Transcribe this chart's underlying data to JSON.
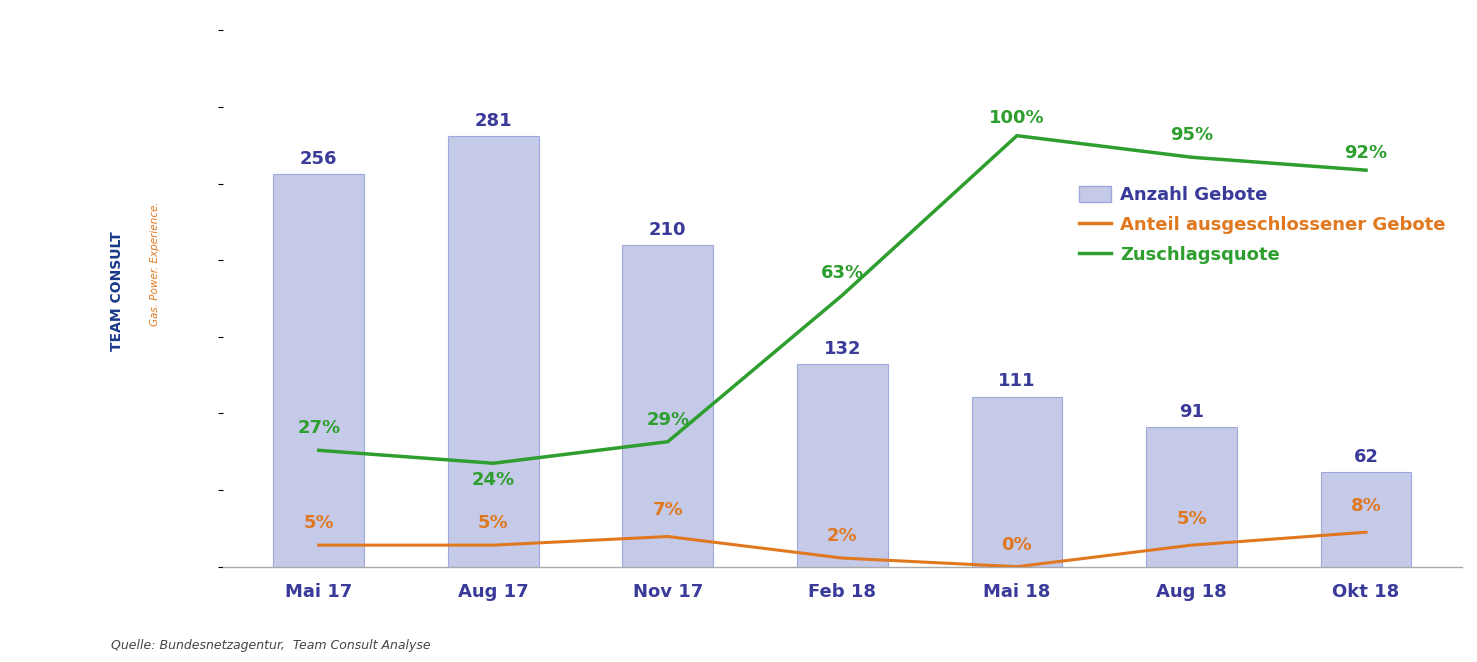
{
  "categories": [
    "Mai 17",
    "Aug 17",
    "Nov 17",
    "Feb 18",
    "Mai 18",
    "Aug 18",
    "Okt 18"
  ],
  "bar_values": [
    256,
    281,
    210,
    132,
    111,
    91,
    62
  ],
  "orange_line_values": [
    5,
    5,
    7,
    2,
    0,
    5,
    8
  ],
  "green_line_values": [
    27,
    24,
    29,
    63,
    100,
    95,
    92
  ],
  "bar_color": "#c5cae9",
  "bar_edgecolor": "#9fa8da",
  "orange_color": "#e07820",
  "green_color": "#2e9e2e",
  "bar_label_color": "#3a3a9a",
  "orange_label_color": "#e07820",
  "green_label_color": "#2e9e2e",
  "legend_bar_label": "Anzahl Gebote",
  "legend_orange_label": "Anteil ausgeschlossener Gebote",
  "legend_green_label": "Zuschlagsquote",
  "source_text": "Quelle: Bundesnetzagentur,  Team Consult Analyse",
  "ylim_left": [
    0,
    360
  ],
  "ylim_right": [
    0,
    128
  ],
  "background_color": "#ffffff",
  "spine_color": "#aaaaaa",
  "team_consult_color": "#1a3a8a",
  "gas_power_color": "#e07820",
  "orange_label_offsets": [
    3,
    3,
    4,
    3,
    3,
    4,
    4
  ],
  "green_label_offsets": [
    3,
    -6,
    3,
    3,
    2,
    3,
    2
  ]
}
